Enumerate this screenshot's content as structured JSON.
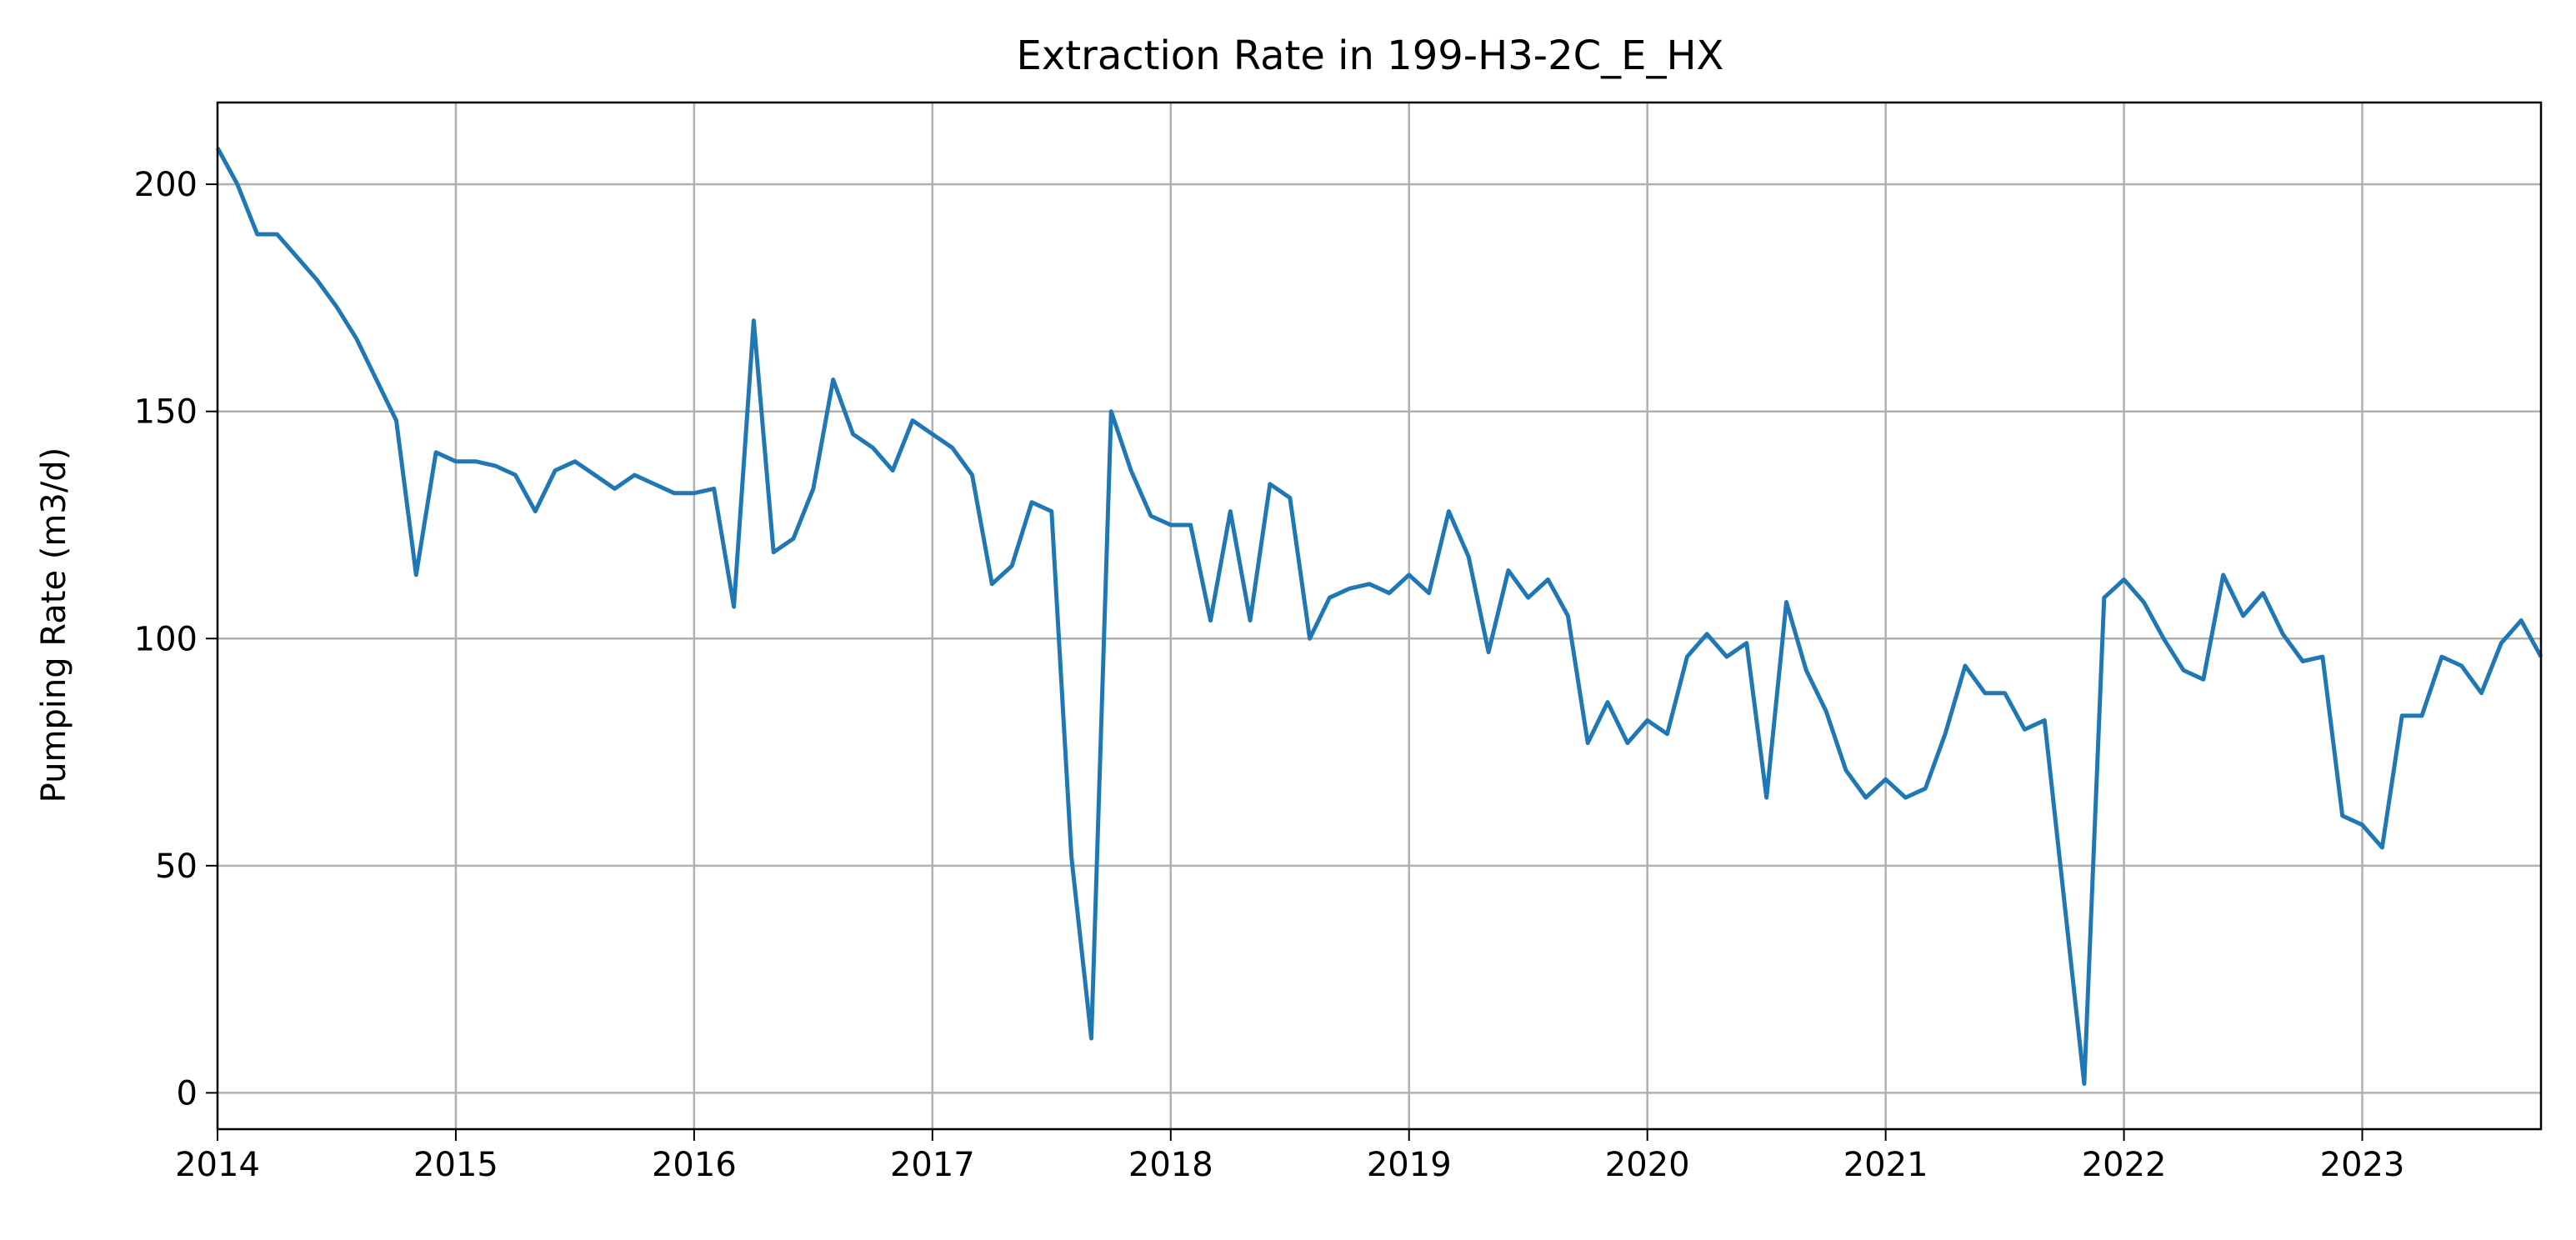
{
  "chart_data": {
    "type": "line",
    "title": "Extraction Rate in 199-H3-2C_E_HX",
    "xlabel": "",
    "ylabel": "Pumping Rate (m3/d)",
    "xlim": [
      "2014-01",
      "2023-10"
    ],
    "ylim": [
      -8,
      218
    ],
    "grid": true,
    "line_color": "#1f77b4",
    "x_ticks": [
      "2014",
      "2015",
      "2016",
      "2017",
      "2018",
      "2019",
      "2020",
      "2021",
      "2022",
      "2023"
    ],
    "y_ticks": [
      0,
      50,
      100,
      150,
      200
    ],
    "series": [
      {
        "x": [
          "2014-01",
          "2014-02",
          "2014-03",
          "2014-04",
          "2014-05",
          "2014-06",
          "2014-07",
          "2014-08",
          "2014-09",
          "2014-10",
          "2014-11",
          "2014-12",
          "2015-01",
          "2015-02",
          "2015-03",
          "2015-04",
          "2015-05",
          "2015-06",
          "2015-07",
          "2015-08",
          "2015-09",
          "2015-10",
          "2015-11",
          "2015-12",
          "2016-01",
          "2016-02",
          "2016-03",
          "2016-04",
          "2016-05",
          "2016-06",
          "2016-07",
          "2016-08",
          "2016-09",
          "2016-10",
          "2016-11",
          "2016-12",
          "2017-01",
          "2017-02",
          "2017-03",
          "2017-04",
          "2017-05",
          "2017-06",
          "2017-07",
          "2017-08",
          "2017-09",
          "2017-10",
          "2017-11",
          "2017-12",
          "2018-01",
          "2018-02",
          "2018-03",
          "2018-04",
          "2018-05",
          "2018-06",
          "2018-07",
          "2018-08",
          "2018-09",
          "2018-10",
          "2018-11",
          "2018-12",
          "2019-01",
          "2019-02",
          "2019-03",
          "2019-04",
          "2019-05",
          "2019-06",
          "2019-07",
          "2019-08",
          "2019-09",
          "2019-10",
          "2019-11",
          "2019-12",
          "2020-01",
          "2020-02",
          "2020-03",
          "2020-04",
          "2020-05",
          "2020-06",
          "2020-07",
          "2020-08",
          "2020-09",
          "2020-10",
          "2020-11",
          "2020-12",
          "2021-01",
          "2021-02",
          "2021-03",
          "2021-04",
          "2021-05",
          "2021-06",
          "2021-07",
          "2021-08",
          "2021-09",
          "2021-10",
          "2021-11",
          "2021-12",
          "2022-01",
          "2022-02",
          "2022-03",
          "2022-04",
          "2022-05",
          "2022-06",
          "2022-07",
          "2022-08",
          "2022-09",
          "2022-10",
          "2022-11",
          "2022-12",
          "2023-01",
          "2023-02",
          "2023-03",
          "2023-04",
          "2023-05",
          "2023-06",
          "2023-07",
          "2023-08",
          "2023-09",
          "2023-10"
        ],
        "values": [
          208,
          200,
          189,
          189,
          184,
          179,
          173,
          166,
          157,
          148,
          114,
          141,
          139,
          139,
          138,
          136,
          128,
          137,
          139,
          136,
          133,
          136,
          134,
          132,
          132,
          133,
          107,
          170,
          119,
          122,
          133,
          157,
          145,
          142,
          137,
          148,
          145,
          142,
          136,
          112,
          116,
          130,
          128,
          52,
          12,
          150,
          137,
          127,
          125,
          125,
          104,
          128,
          104,
          134,
          131,
          100,
          109,
          111,
          112,
          110,
          114,
          110,
          128,
          118,
          97,
          115,
          109,
          113,
          105,
          77,
          86,
          77,
          82,
          79,
          96,
          101,
          96,
          99,
          65,
          108,
          93,
          84,
          71,
          65,
          69,
          65,
          67,
          79,
          94,
          88,
          88,
          80,
          82,
          42,
          2,
          109,
          113,
          108,
          100,
          93,
          91,
          114,
          105,
          110,
          101,
          95,
          96,
          61,
          59,
          54,
          83,
          83,
          96,
          94,
          88,
          99,
          104,
          96
        ]
      }
    ]
  }
}
